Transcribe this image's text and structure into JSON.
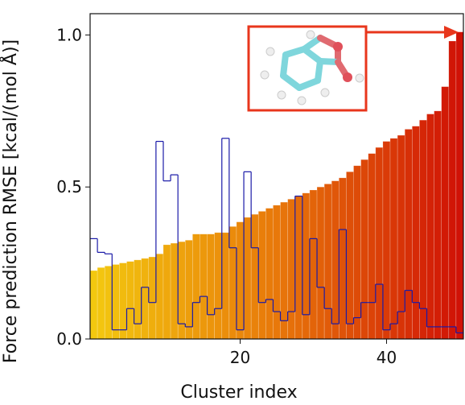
{
  "chart_data": {
    "type": "bar",
    "x": [
      0,
      1,
      2,
      3,
      4,
      5,
      6,
      7,
      8,
      9,
      10,
      11,
      12,
      13,
      14,
      15,
      16,
      17,
      18,
      19,
      20,
      21,
      22,
      23,
      24,
      25,
      26,
      27,
      28,
      29,
      30,
      31,
      32,
      33,
      34,
      35,
      36,
      37,
      38,
      39,
      40,
      41,
      42,
      43,
      44,
      45,
      46,
      47,
      48,
      49,
      50
    ],
    "series": [
      {
        "type": "bar",
        "colormap": [
          "#f3c80f",
          "#e8780a",
          "#d01206"
        ],
        "values": [
          0.225,
          0.235,
          0.24,
          0.245,
          0.25,
          0.255,
          0.26,
          0.265,
          0.27,
          0.28,
          0.31,
          0.315,
          0.32,
          0.325,
          0.345,
          0.345,
          0.345,
          0.35,
          0.35,
          0.37,
          0.385,
          0.4,
          0.41,
          0.42,
          0.43,
          0.44,
          0.45,
          0.46,
          0.47,
          0.48,
          0.49,
          0.5,
          0.51,
          0.52,
          0.53,
          0.55,
          0.57,
          0.59,
          0.61,
          0.63,
          0.65,
          0.66,
          0.67,
          0.69,
          0.7,
          0.72,
          0.74,
          0.75,
          0.83,
          0.98,
          1.01
        ]
      },
      {
        "type": "step",
        "color": "#1a1aa8",
        "values": [
          0.33,
          0.285,
          0.28,
          0.03,
          0.03,
          0.1,
          0.05,
          0.17,
          0.12,
          0.65,
          0.52,
          0.54,
          0.05,
          0.04,
          0.12,
          0.14,
          0.08,
          0.1,
          0.66,
          0.3,
          0.03,
          0.55,
          0.3,
          0.12,
          0.13,
          0.09,
          0.06,
          0.09,
          0.47,
          0.08,
          0.33,
          0.17,
          0.1,
          0.05,
          0.36,
          0.05,
          0.07,
          0.12,
          0.12,
          0.18,
          0.03,
          0.05,
          0.09,
          0.16,
          0.12,
          0.1,
          0.04,
          0.04,
          0.04,
          0.04,
          0.02
        ]
      }
    ],
    "xlabel": "Cluster index",
    "ylabel": "Force prediction RMSE [kcal/(mol Å)]",
    "xlim": [
      -0.5,
      50.5
    ],
    "ylim": [
      0,
      1.07
    ],
    "xticks": [
      20,
      40
    ],
    "yticks": [
      {
        "value": 0,
        "label": "0.0"
      },
      {
        "value": 0.5,
        "label": "0.5"
      },
      {
        "value": 1,
        "label": "1.0"
      }
    ]
  }
}
